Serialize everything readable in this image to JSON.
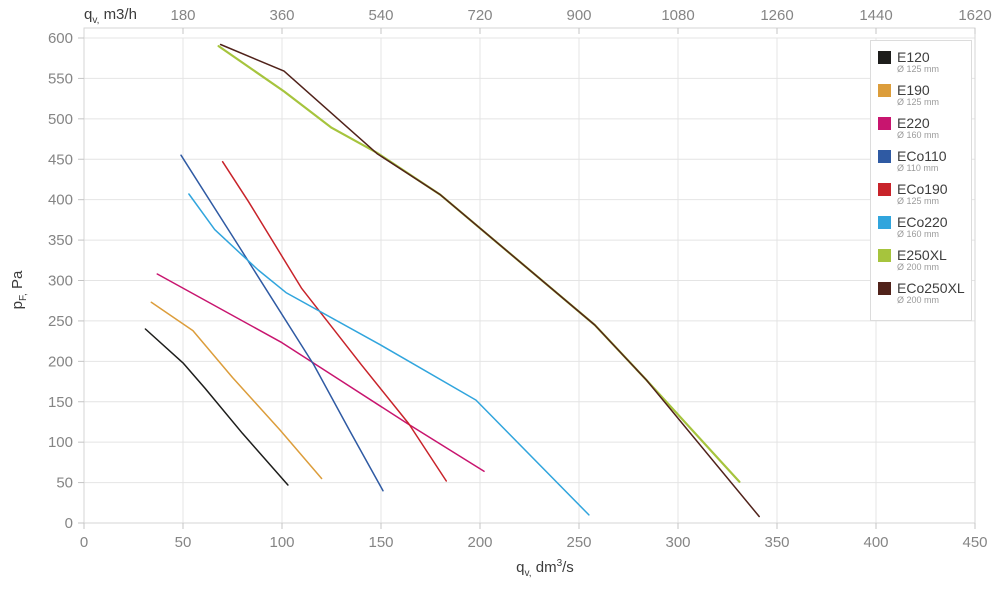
{
  "chart_data": {
    "type": "line",
    "grid": true,
    "legend_position": "top-right",
    "y_axis": {
      "label": {
        "main": "p",
        "sub": "F,",
        "unit": "Pa"
      },
      "range": [
        0,
        600
      ],
      "ticks": [
        0,
        50,
        100,
        150,
        200,
        250,
        300,
        350,
        400,
        450,
        500,
        550,
        600
      ]
    },
    "x_axis_bottom": {
      "label": {
        "main": "q",
        "sub": "v,",
        "unit_pre": "dm",
        "unit_sup": "3",
        "unit_post": "/s"
      },
      "range": [
        0,
        450
      ],
      "ticks": [
        0,
        50,
        100,
        150,
        200,
        250,
        300,
        350,
        400,
        450
      ]
    },
    "x_axis_top": {
      "label": {
        "main": "q",
        "sub": "v,",
        "unit": "m3/h"
      },
      "ticks": [
        180,
        360,
        540,
        720,
        900,
        1080,
        1260,
        1440,
        1620
      ],
      "dm3s_per_m3h": 3.6
    },
    "series": [
      {
        "name": "E120",
        "diameter": "Ø 125 mm",
        "color": "#1d1d1b",
        "width": 1.5,
        "points": [
          [
            31,
            240
          ],
          [
            50,
            198
          ],
          [
            61,
            167
          ],
          [
            80,
            111
          ],
          [
            103,
            47
          ]
        ]
      },
      {
        "name": "E190",
        "diameter": "Ø 125 mm",
        "color": "#dc9d3b",
        "width": 1.5,
        "points": [
          [
            34,
            273
          ],
          [
            55,
            238
          ],
          [
            75,
            180
          ],
          [
            99,
            115
          ],
          [
            120,
            55
          ]
        ]
      },
      {
        "name": "E220",
        "diameter": "Ø 160 mm",
        "color": "#c8156f",
        "width": 1.5,
        "points": [
          [
            37,
            308
          ],
          [
            100,
            223
          ],
          [
            164,
            122
          ],
          [
            202,
            64
          ]
        ]
      },
      {
        "name": "ECo110",
        "diameter": "Ø 110 mm",
        "color": "#2f5aa3",
        "width": 1.5,
        "points": [
          [
            49,
            455
          ],
          [
            77,
            347
          ],
          [
            116,
            196
          ],
          [
            134,
            115
          ],
          [
            151,
            40
          ]
        ]
      },
      {
        "name": "ECo190",
        "diameter": "Ø 125 mm",
        "color": "#c8232a",
        "width": 1.5,
        "points": [
          [
            70,
            447
          ],
          [
            83,
            398
          ],
          [
            110,
            290
          ],
          [
            140,
            196
          ],
          [
            164,
            123
          ],
          [
            183,
            52
          ]
        ]
      },
      {
        "name": "ECo220",
        "diameter": "Ø 160 mm",
        "color": "#31a5dd",
        "width": 1.5,
        "points": [
          [
            53,
            407
          ],
          [
            66,
            363
          ],
          [
            88,
            313
          ],
          [
            102,
            285
          ],
          [
            150,
            220
          ],
          [
            198,
            152
          ],
          [
            255,
            10
          ]
        ]
      },
      {
        "name": "E250XL",
        "diameter": "Ø 200 mm",
        "color": "#a6c43d",
        "width": 2.2,
        "points": [
          [
            68,
            590
          ],
          [
            101,
            534
          ],
          [
            125,
            489
          ],
          [
            148,
            458
          ],
          [
            180,
            406
          ],
          [
            258,
            245
          ],
          [
            284,
            177
          ],
          [
            331,
            51
          ]
        ]
      },
      {
        "name": "ECo250XL",
        "diameter": "Ø 200 mm",
        "color": "#50221a",
        "width": 1.5,
        "points": [
          [
            69,
            592
          ],
          [
            101,
            559
          ],
          [
            125,
            507
          ],
          [
            148,
            457
          ],
          [
            180,
            406
          ],
          [
            258,
            245
          ],
          [
            284,
            177
          ],
          [
            341,
            8
          ]
        ]
      }
    ],
    "style": {
      "grid_color": "#e4e4e4",
      "border_color": "#d6d6d6",
      "tick_color": "#c4c4c4",
      "tick_label_color": "#858585"
    }
  }
}
